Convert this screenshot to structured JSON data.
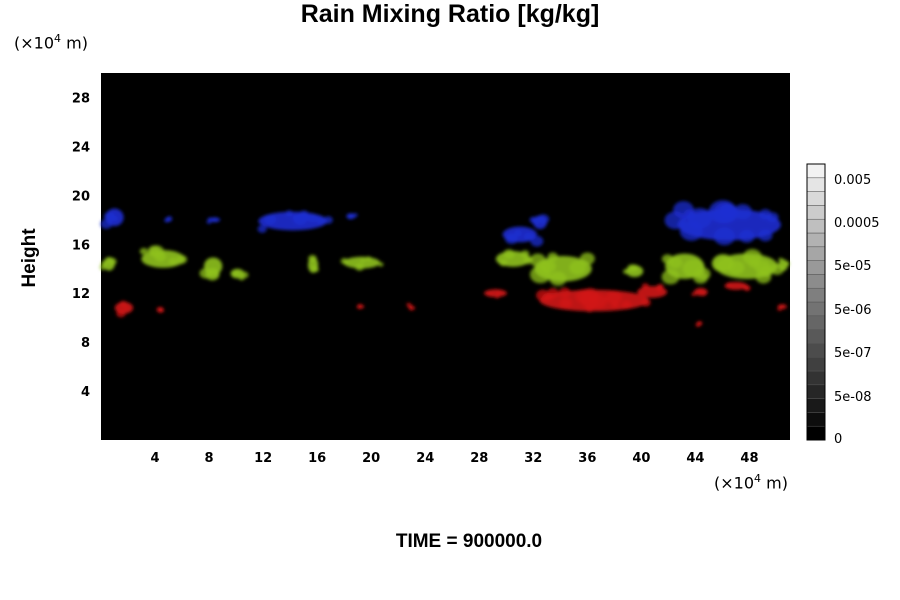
{
  "chart_data": {
    "type": "heatmap",
    "title": "Rain Mixing Ratio [kg/kg]",
    "ylabel": "Height",
    "x_unit_prefix": "(×10",
    "x_unit_exp": "4",
    "x_unit_suffix": " m)",
    "y_unit_prefix": "(×10",
    "y_unit_exp": "4",
    "y_unit_suffix": " m)",
    "footer": "TIME = 900000.0",
    "xlim": [
      0,
      51
    ],
    "ylim": [
      0,
      30
    ],
    "x_ticks": [
      "4",
      "8",
      "12",
      "16",
      "20",
      "24",
      "28",
      "32",
      "36",
      "40",
      "44",
      "48"
    ],
    "y_ticks": [
      "4",
      "8",
      "12",
      "16",
      "20",
      "24",
      "28"
    ],
    "background_color": "#000000",
    "colorbar": {
      "labels": [
        "0",
        "5e-08",
        "5e-07",
        "5e-06",
        "5e-05",
        "0.0005",
        "0.005"
      ],
      "levels": 20,
      "color_low": "#000000",
      "color_high": "#f2f2f2"
    },
    "layers": [
      {
        "band": "upper",
        "color": "#1e2dd2",
        "y_range": [
          16.5,
          19.5
        ]
      },
      {
        "band": "middle",
        "color": "#8fc21e",
        "y_range": [
          12.5,
          16.0
        ]
      },
      {
        "band": "lower",
        "color": "#d21515",
        "y_range": [
          9.5,
          13.0
        ]
      }
    ],
    "features": [
      {
        "layer": "upper",
        "x": 1.0,
        "y": 18.2,
        "w": 1.6,
        "h": 1.8
      },
      {
        "layer": "upper",
        "x": 5.0,
        "y": 18.0,
        "w": 0.6,
        "h": 0.4
      },
      {
        "layer": "upper",
        "x": 8.4,
        "y": 18.0,
        "w": 1.0,
        "h": 0.5
      },
      {
        "layer": "upper",
        "x": 14.2,
        "y": 17.9,
        "w": 6.0,
        "h": 1.9
      },
      {
        "layer": "upper",
        "x": 18.5,
        "y": 18.3,
        "w": 0.8,
        "h": 0.6
      },
      {
        "layer": "upper",
        "x": 31.0,
        "y": 16.8,
        "w": 3.0,
        "h": 1.6
      },
      {
        "layer": "upper",
        "x": 32.5,
        "y": 17.8,
        "w": 1.2,
        "h": 1.4
      },
      {
        "layer": "upper",
        "x": 46.5,
        "y": 17.6,
        "w": 9.0,
        "h": 3.2
      },
      {
        "layer": "middle",
        "x": 0.6,
        "y": 14.4,
        "w": 1.0,
        "h": 1.4
      },
      {
        "layer": "middle",
        "x": 4.6,
        "y": 14.8,
        "w": 3.8,
        "h": 1.8
      },
      {
        "layer": "middle",
        "x": 8.3,
        "y": 14.2,
        "w": 1.6,
        "h": 1.8
      },
      {
        "layer": "middle",
        "x": 10.1,
        "y": 13.6,
        "w": 1.2,
        "h": 1.0
      },
      {
        "layer": "middle",
        "x": 15.7,
        "y": 14.3,
        "w": 0.9,
        "h": 1.6
      },
      {
        "layer": "middle",
        "x": 19.3,
        "y": 14.5,
        "w": 3.2,
        "h": 1.2
      },
      {
        "layer": "middle",
        "x": 30.5,
        "y": 14.8,
        "w": 3.0,
        "h": 1.6
      },
      {
        "layer": "middle",
        "x": 34.2,
        "y": 14.0,
        "w": 5.0,
        "h": 2.6
      },
      {
        "layer": "middle",
        "x": 39.5,
        "y": 13.8,
        "w": 1.5,
        "h": 1.2
      },
      {
        "layer": "middle",
        "x": 43.2,
        "y": 14.2,
        "w": 3.4,
        "h": 2.6
      },
      {
        "layer": "middle",
        "x": 47.8,
        "y": 14.2,
        "w": 5.4,
        "h": 2.6
      },
      {
        "layer": "middle",
        "x": 50.5,
        "y": 14.3,
        "w": 0.8,
        "h": 1.2
      },
      {
        "layer": "lower",
        "x": 1.7,
        "y": 10.8,
        "w": 1.6,
        "h": 1.2
      },
      {
        "layer": "lower",
        "x": 4.4,
        "y": 10.6,
        "w": 0.6,
        "h": 0.5
      },
      {
        "layer": "lower",
        "x": 19.3,
        "y": 10.9,
        "w": 0.4,
        "h": 0.4
      },
      {
        "layer": "lower",
        "x": 22.9,
        "y": 10.9,
        "w": 0.4,
        "h": 0.4
      },
      {
        "layer": "lower",
        "x": 29.2,
        "y": 12.0,
        "w": 2.0,
        "h": 0.8
      },
      {
        "layer": "lower",
        "x": 36.5,
        "y": 11.4,
        "w": 9.5,
        "h": 2.2
      },
      {
        "layer": "lower",
        "x": 40.8,
        "y": 12.1,
        "w": 2.6,
        "h": 1.2
      },
      {
        "layer": "lower",
        "x": 44.4,
        "y": 12.1,
        "w": 1.2,
        "h": 0.8
      },
      {
        "layer": "lower",
        "x": 47.0,
        "y": 12.6,
        "w": 2.0,
        "h": 0.8
      },
      {
        "layer": "lower",
        "x": 44.3,
        "y": 9.5,
        "w": 0.4,
        "h": 0.4
      },
      {
        "layer": "lower",
        "x": 50.5,
        "y": 10.9,
        "w": 0.6,
        "h": 0.5
      }
    ]
  }
}
